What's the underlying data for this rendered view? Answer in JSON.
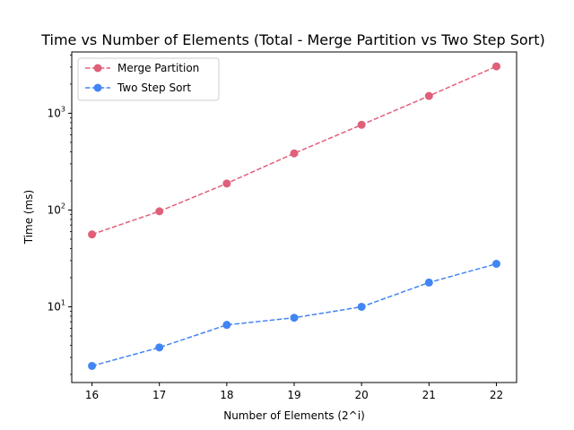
{
  "chart_data": {
    "type": "line",
    "title": "Time vs Number of Elements (Total - Merge Partition vs Two Step Sort)",
    "xlabel": "Number of Elements (2^i)",
    "ylabel": "Time (ms)",
    "x": [
      16,
      17,
      18,
      19,
      20,
      21,
      22
    ],
    "xlim": [
      15.7,
      22.3
    ],
    "yscale": "log",
    "ylim": [
      1.65,
      4300
    ],
    "y_ticks": [
      {
        "value": 10,
        "label": "10",
        "exp": "1"
      },
      {
        "value": 100,
        "label": "10",
        "exp": "2"
      },
      {
        "value": 1000,
        "label": "10",
        "exp": "3"
      }
    ],
    "grid": false,
    "legend_position": "top-left",
    "series": [
      {
        "name": "Merge Partition",
        "color": "#e0607a",
        "values": [
          56,
          97,
          188,
          385,
          760,
          1510,
          3050
        ]
      },
      {
        "name": "Two Step Sort",
        "color": "#4285f4",
        "values": [
          2.45,
          3.8,
          6.5,
          7.7,
          10.0,
          17.8,
          27.8
        ]
      }
    ]
  }
}
